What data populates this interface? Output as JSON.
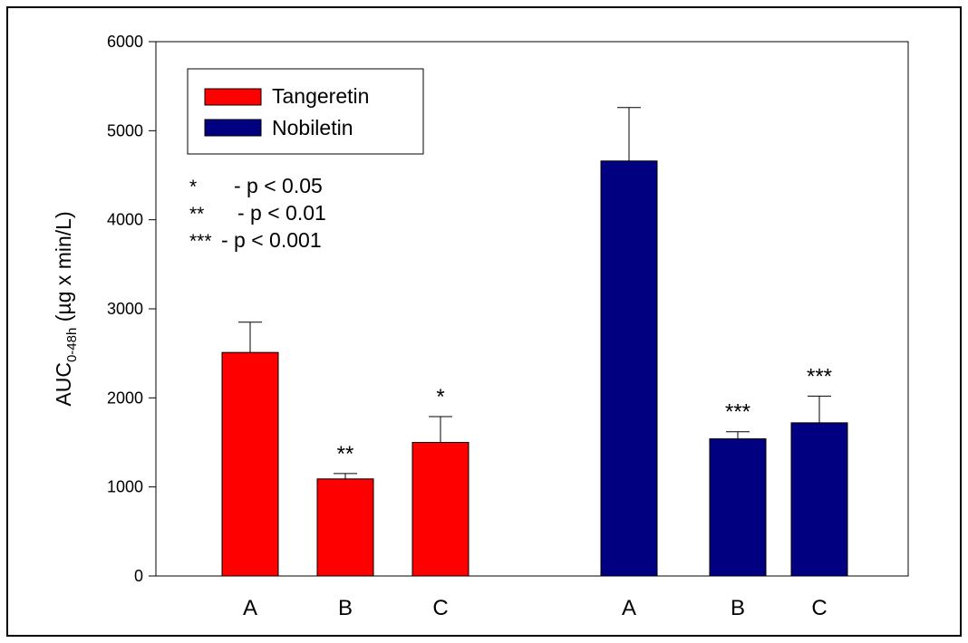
{
  "chart_data": {
    "type": "bar",
    "ylabel_main": "AUC",
    "ylabel_sub": "0-48h",
    "ylabel_rest": " (µg x min/L)",
    "ylim": [
      0,
      6000
    ],
    "yticks": [
      0,
      1000,
      2000,
      3000,
      4000,
      5000,
      6000
    ],
    "yticklabels": [
      "0",
      "1000",
      "2000",
      "3000",
      "4000",
      "5000",
      "6000"
    ],
    "series": [
      {
        "name": "Tangeretin",
        "color": "#ff0000",
        "categories": [
          "A",
          "B",
          "C"
        ],
        "values": [
          2510,
          1090,
          1500
        ],
        "errors": [
          340,
          60,
          290
        ],
        "significance": [
          "",
          "**",
          "*"
        ]
      },
      {
        "name": "Nobiletin",
        "color": "#000080",
        "categories": [
          "A",
          "B",
          "C"
        ],
        "values": [
          4660,
          1540,
          1720
        ],
        "errors": [
          600,
          80,
          300
        ],
        "significance": [
          "",
          "***",
          "***"
        ]
      }
    ],
    "legend_position": "top-left",
    "significance_key": [
      {
        "symbol": "*",
        "text": "- p < 0.05"
      },
      {
        "symbol": "**",
        "text": "- p < 0.01"
      },
      {
        "symbol": "***",
        "text": "- p < 0.001"
      }
    ]
  }
}
